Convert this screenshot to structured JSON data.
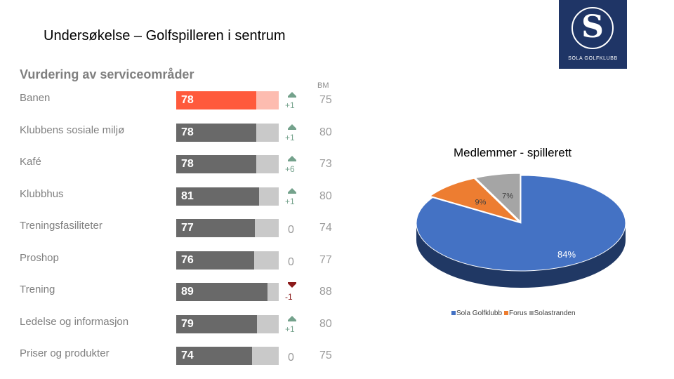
{
  "slide": {
    "title": "Undersøkelse – Golfspilleren i sentrum"
  },
  "logo": {
    "monogram": "S",
    "club_name": "SOLA GOLFKLUBB"
  },
  "chart_data": [
    {
      "type": "bar",
      "title": "Vurdering av serviceområder",
      "benchmark_label": "BM",
      "scale_max": 100,
      "highlight_color": "#ff5a3c",
      "bar_color": "#696969",
      "track_color": "#c9c9c9",
      "rows": [
        {
          "label": "Banen",
          "value": 78,
          "change": "+1",
          "trend": "up",
          "benchmark": 75,
          "highlight": true
        },
        {
          "label": "Klubbens sosiale miljø",
          "value": 78,
          "change": "+1",
          "trend": "up",
          "benchmark": 80
        },
        {
          "label": "Kafé",
          "value": 78,
          "change": "+6",
          "trend": "up",
          "benchmark": 73
        },
        {
          "label": "Klubbhus",
          "value": 81,
          "change": "+1",
          "trend": "up",
          "benchmark": 80
        },
        {
          "label": "Treningsfasiliteter",
          "value": 77,
          "change": "0",
          "trend": "none",
          "benchmark": 74
        },
        {
          "label": "Proshop",
          "value": 76,
          "change": "0",
          "trend": "none",
          "benchmark": 77
        },
        {
          "label": "Trening",
          "value": 89,
          "change": "-1",
          "trend": "down",
          "benchmark": 88
        },
        {
          "label": "Ledelse og informasjon",
          "value": 79,
          "change": "+1",
          "trend": "up",
          "benchmark": 80
        },
        {
          "label": "Priser og produkter",
          "value": 74,
          "change": "0",
          "trend": "none",
          "benchmark": 75
        }
      ]
    },
    {
      "type": "pie",
      "title": "Medlemmer - spillerett",
      "slices": [
        {
          "name": "Sola Golfklubb",
          "value": 84,
          "label": "84%",
          "color": "#4472c4",
          "side_color": "#203864"
        },
        {
          "name": "Forus",
          "value": 9,
          "label": "9%",
          "color": "#ed7d31",
          "side_color": "#ae5a21"
        },
        {
          "name": "Solastranden",
          "value": 7,
          "label": "7%",
          "color": "#a5a5a5",
          "side_color": "#7b7b7b"
        }
      ]
    }
  ]
}
